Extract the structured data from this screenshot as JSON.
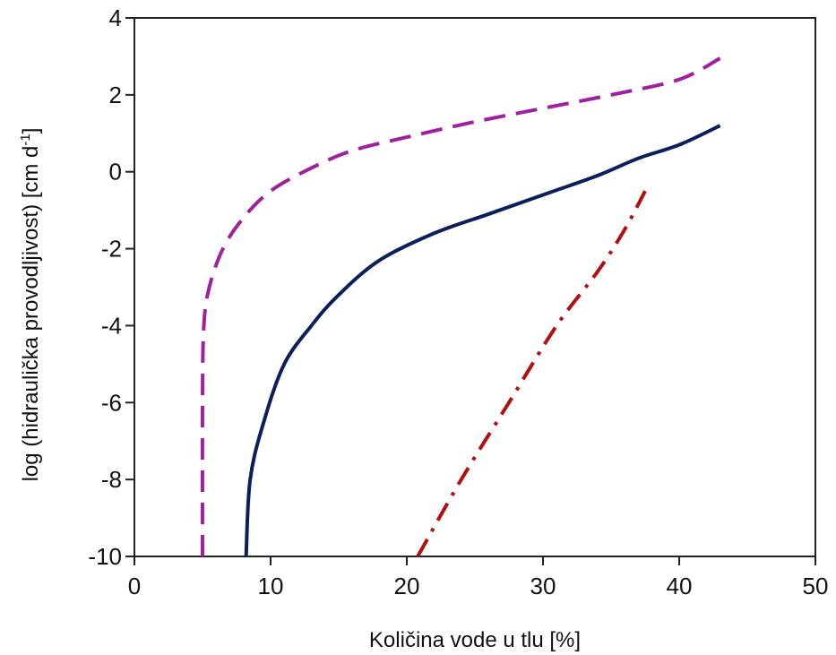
{
  "chart_data": {
    "type": "line",
    "xlabel": "Količina vode u tlu [%]",
    "ylabel": {
      "main": "log  (hidraulička provodljivost) [cm d",
      "superscript": "-1",
      "close": "]"
    },
    "xlim": [
      0,
      50
    ],
    "ylim": [
      -10,
      4
    ],
    "x_ticks": [
      0,
      10,
      20,
      30,
      40,
      50
    ],
    "y_ticks": [
      -10,
      -8,
      -6,
      -4,
      -2,
      0,
      2,
      4
    ],
    "grid": false,
    "series": [
      {
        "style": "dashed",
        "color": "#a020a0",
        "points": [
          [
            5.0,
            -10
          ],
          [
            5.0,
            -6
          ],
          [
            5.1,
            -4
          ],
          [
            5.5,
            -3
          ],
          [
            6.5,
            -2
          ],
          [
            8,
            -1.2
          ],
          [
            10,
            -0.5
          ],
          [
            13,
            0.1
          ],
          [
            16,
            0.55
          ],
          [
            20,
            0.9
          ],
          [
            25,
            1.3
          ],
          [
            30,
            1.65
          ],
          [
            35,
            2.0
          ],
          [
            40,
            2.4
          ],
          [
            43,
            2.95
          ]
        ]
      },
      {
        "style": "solid",
        "color": "#0a1f5c",
        "points": [
          [
            8.2,
            -10
          ],
          [
            8.5,
            -8
          ],
          [
            9.5,
            -6.5
          ],
          [
            11,
            -5
          ],
          [
            13,
            -4
          ],
          [
            15,
            -3.2
          ],
          [
            18,
            -2.3
          ],
          [
            22,
            -1.6
          ],
          [
            26,
            -1.1
          ],
          [
            30,
            -0.6
          ],
          [
            34,
            -0.1
          ],
          [
            37,
            0.35
          ],
          [
            40,
            0.7
          ],
          [
            43,
            1.2
          ]
        ]
      },
      {
        "style": "dashdot",
        "color": "#b01010",
        "points": [
          [
            20.8,
            -10
          ],
          [
            24,
            -8
          ],
          [
            27.5,
            -6
          ],
          [
            31,
            -4
          ],
          [
            34,
            -2.6
          ],
          [
            36,
            -1.5
          ],
          [
            37.5,
            -0.5
          ]
        ]
      }
    ]
  }
}
